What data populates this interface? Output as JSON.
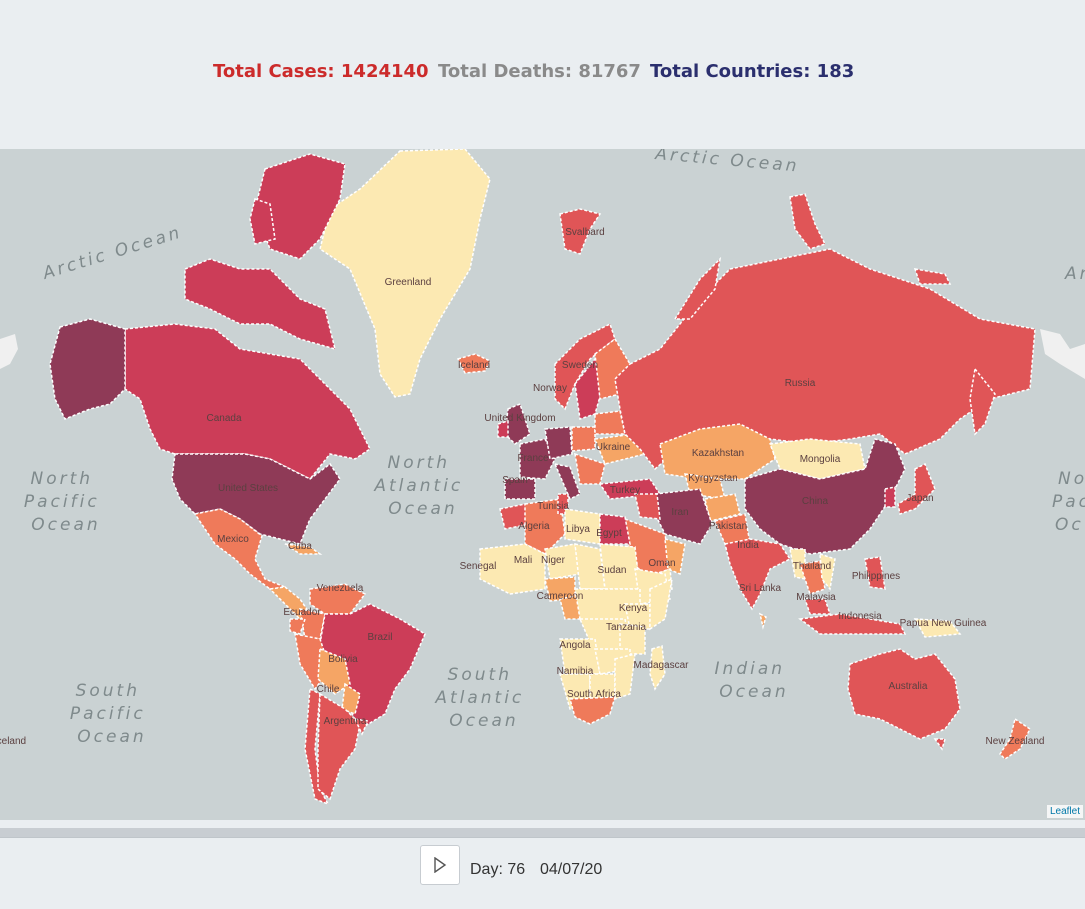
{
  "stats": {
    "cases_label": "Total Cases: 1424140",
    "deaths_label": "Total Deaths: 81767",
    "countries_label": "Total Countries: 183",
    "cases_color": "#cc2b2b",
    "deaths_color": "#8a8a8a",
    "countries_color": "#2b2f6e"
  },
  "map": {
    "oceans": {
      "arctic_top": "Arctic Ocean",
      "arctic_left": "Arctic Ocean",
      "arctic_right": "Ar",
      "north_pacific": [
        "North",
        "Pacific",
        "Ocean"
      ],
      "north_pacific_right": [
        "No",
        "Pac",
        "Oc"
      ],
      "north_atlantic": [
        "North",
        "Atlantic",
        "Ocean"
      ],
      "south_atlantic": [
        "South",
        "Atlantic",
        "Ocean"
      ],
      "south_pacific": [
        "South",
        "Pacific",
        "Ocean"
      ],
      "indian": [
        "Indian",
        "Ocean"
      ]
    },
    "countries": {
      "greenland": "Greenland",
      "canada": "Canada",
      "united_states": "United States",
      "mexico": "Mexico",
      "cuba": "Cuba",
      "venezuela": "Venezuela",
      "ecuador": "Ecuador",
      "brazil": "Brazil",
      "bolivia": "Bolivia",
      "chile": "Chile",
      "argentina": "Argentina",
      "russia": "Russia",
      "kazakhstan": "Kazakhstan",
      "mongolia": "Mongolia",
      "china": "China",
      "japan": "Japan",
      "india": "India",
      "iran": "Iran",
      "turkey": "Turkey",
      "ukraine": "Ukraine",
      "france": "France",
      "spain": "Spain",
      "united_kingdom": "United Kingdom",
      "sweden": "Sweden",
      "norway": "Norway",
      "iceland": "Iceland",
      "svalbard": "Svalbard",
      "algeria": "Algeria",
      "libya": "Libya",
      "egypt": "Egypt",
      "mali": "Mali",
      "niger": "Niger",
      "senegal": "Senegal",
      "sudan": "Sudan",
      "cameroon": "Cameroon",
      "kenya": "Kenya",
      "tanzania": "Tanzania",
      "angola": "Angola",
      "namibia": "Namibia",
      "south_africa": "South Africa",
      "madagascar": "Madagascar",
      "sri_lanka": "Sri Lanka",
      "thailand": "Thailand",
      "malaysia": "Malaysia",
      "philippines": "Philippines",
      "indonesia": "Indonesia",
      "papua_new_guinea": "Papua New Guinea",
      "australia": "Australia",
      "new_zealand": "New Zealand",
      "tunisia": "Tunisia",
      "oman": "Oman",
      "pakistan": "Pakistan",
      "kyrgyzstan": "Kyrgyzstan",
      "iceland_left": "Iceland"
    },
    "colors": {
      "very_high": "#8f3a57",
      "high": "#cc3d58",
      "med_high": "#e05557",
      "medium": "#ef7a5a",
      "low": "#f5a565",
      "very_low": "#fce9b2",
      "land_none": "#f0f0f0",
      "water": "#cad2d3"
    },
    "attribution": "Leaflet"
  },
  "controls": {
    "play_icon": "play-icon",
    "day_label": "Day: 76",
    "date_label": "04/07/20"
  }
}
